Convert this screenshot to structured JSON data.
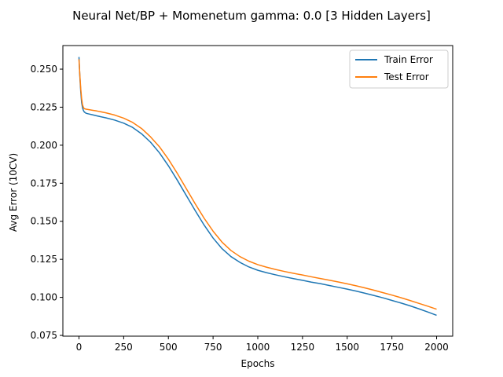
{
  "chart_data": {
    "type": "line",
    "title": "Neural Net/BP + Momenetum gamma: 0.0 [3 Hidden Layers]",
    "xlabel": "Epochs",
    "ylabel": "Avg Error (10CV)",
    "xlim": [
      -90,
      2090
    ],
    "ylim": [
      0.0745,
      0.2655
    ],
    "xticks": [
      0,
      250,
      500,
      750,
      1000,
      1250,
      1500,
      1750,
      2000
    ],
    "yticks": [
      0.075,
      0.1,
      0.125,
      0.15,
      0.175,
      0.2,
      0.225,
      0.25
    ],
    "xtick_labels": [
      "0",
      "250",
      "500",
      "750",
      "1000",
      "1250",
      "1500",
      "1750",
      "2000"
    ],
    "ytick_labels": [
      "0.075",
      "0.100",
      "0.125",
      "0.150",
      "0.175",
      "0.200",
      "0.225",
      "0.250"
    ],
    "grid": false,
    "legend": "top-right",
    "series": [
      {
        "name": "Train Error",
        "color": "#1f77b4",
        "x": [
          0,
          5,
          10,
          15,
          20,
          25,
          30,
          40,
          50,
          75,
          100,
          150,
          200,
          250,
          300,
          350,
          400,
          450,
          500,
          550,
          600,
          650,
          700,
          750,
          800,
          850,
          900,
          950,
          1000,
          1050,
          1100,
          1150,
          1200,
          1250,
          1300,
          1350,
          1400,
          1450,
          1500,
          1550,
          1600,
          1650,
          1700,
          1750,
          1800,
          1850,
          1900,
          1950,
          2000
        ],
        "y": [
          0.258,
          0.245,
          0.235,
          0.228,
          0.2245,
          0.2228,
          0.2218,
          0.221,
          0.2207,
          0.22,
          0.2193,
          0.218,
          0.2165,
          0.2145,
          0.2117,
          0.2075,
          0.202,
          0.195,
          0.1865,
          0.177,
          0.167,
          0.157,
          0.1475,
          0.139,
          0.132,
          0.1268,
          0.123,
          0.12,
          0.1178,
          0.1162,
          0.1148,
          0.1135,
          0.1123,
          0.1112,
          0.11,
          0.109,
          0.1078,
          0.1066,
          0.1054,
          0.1041,
          0.1027,
          0.1012,
          0.0997,
          0.098,
          0.0963,
          0.0945,
          0.0925,
          0.0904,
          0.0882
        ]
      },
      {
        "name": "Test Error",
        "color": "#ff7f0e",
        "x": [
          0,
          5,
          10,
          15,
          20,
          25,
          30,
          40,
          50,
          75,
          100,
          150,
          200,
          250,
          300,
          350,
          400,
          450,
          500,
          550,
          600,
          650,
          700,
          750,
          800,
          850,
          900,
          950,
          1000,
          1050,
          1100,
          1150,
          1200,
          1250,
          1300,
          1350,
          1400,
          1450,
          1500,
          1550,
          1600,
          1650,
          1700,
          1750,
          1800,
          1850,
          1900,
          1950,
          2000
        ],
        "y": [
          0.2565,
          0.246,
          0.237,
          0.2305,
          0.2265,
          0.2248,
          0.224,
          0.2237,
          0.2235,
          0.223,
          0.2225,
          0.2213,
          0.2198,
          0.2178,
          0.215,
          0.211,
          0.2055,
          0.199,
          0.1908,
          0.1815,
          0.1715,
          0.1615,
          0.152,
          0.1435,
          0.1363,
          0.1308,
          0.1268,
          0.1238,
          0.1215,
          0.1198,
          0.1183,
          0.117,
          0.1158,
          0.1147,
          0.1135,
          0.1124,
          0.1113,
          0.1101,
          0.1089,
          0.1076,
          0.1062,
          0.1047,
          0.1031,
          0.1015,
          0.0998,
          0.098,
          0.0961,
          0.0942,
          0.0922
        ]
      }
    ]
  }
}
